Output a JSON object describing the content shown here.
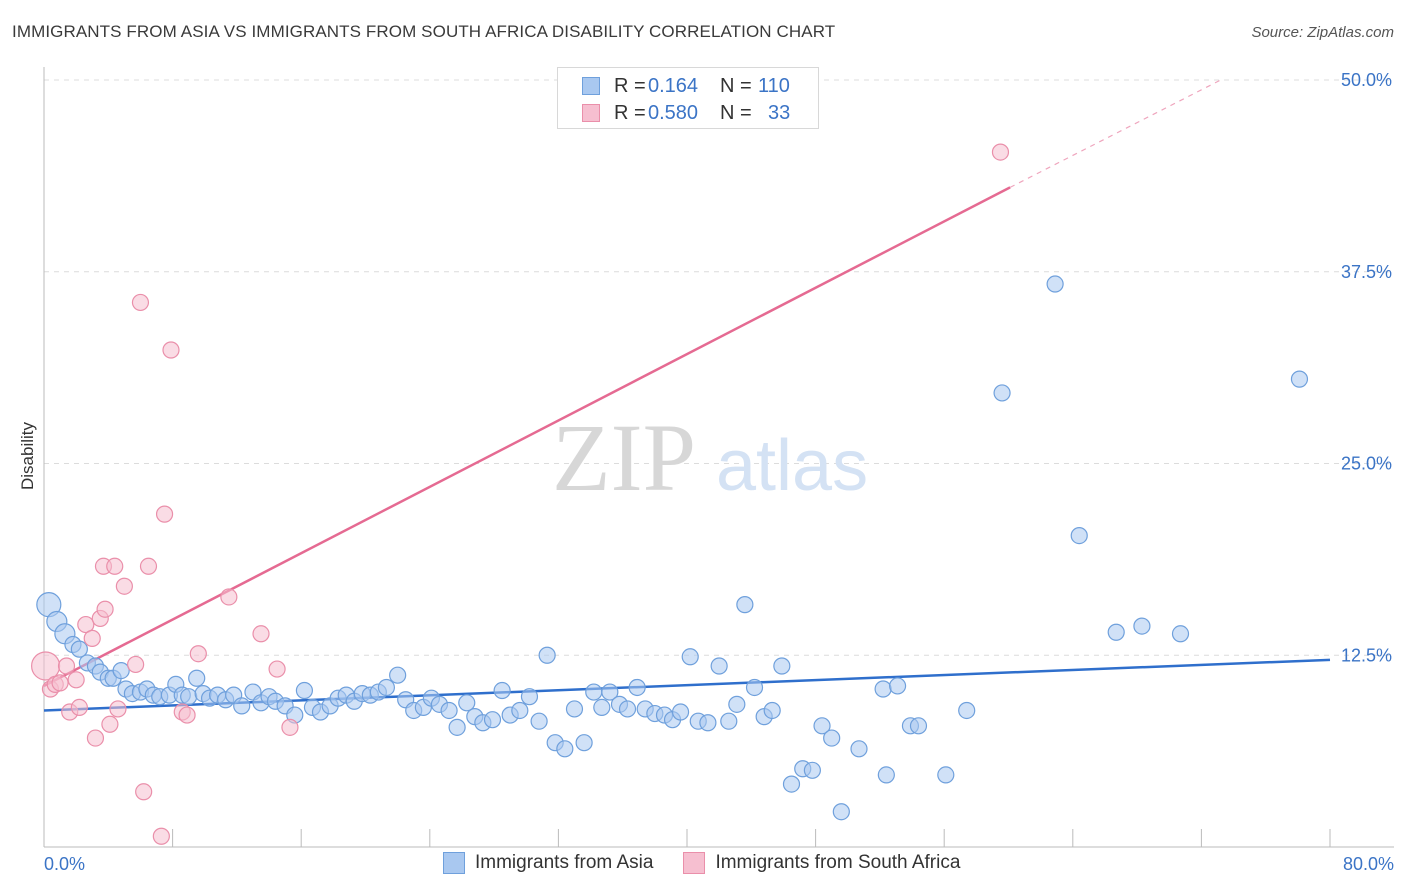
{
  "header": {
    "title": "IMMIGRANTS FROM ASIA VS IMMIGRANTS FROM SOUTH AFRICA DISABILITY CORRELATION CHART",
    "source": "Source: ZipAtlas.com"
  },
  "legend": {
    "rows": [
      {
        "r_label": "R =",
        "r_value": "0.164",
        "n_label": "N =",
        "n_value": "110"
      },
      {
        "r_label": "R =",
        "r_value": "0.580",
        "n_label": "N =",
        "n_value": "33"
      }
    ]
  },
  "watermark": {
    "zip": "ZIP",
    "atlas": "atlas"
  },
  "colors": {
    "asia_fill": "#a9c8f0",
    "asia_stroke": "#6fa0dc",
    "asia_line": "#2f6fcc",
    "sa_fill": "#f6bfd0",
    "sa_stroke": "#ea8faa",
    "sa_line": "#e56a92",
    "axis_text": "#3b74c6",
    "grid": "#dcdcdc"
  },
  "chart_data": {
    "type": "scatter",
    "title": "IMMIGRANTS FROM ASIA VS IMMIGRANTS FROM SOUTH AFRICA DISABILITY CORRELATION CHART",
    "xlabel": "",
    "ylabel": "Disability",
    "xlim": [
      0,
      80
    ],
    "ylim": [
      0,
      50
    ],
    "x_tick_labels": [
      "0.0%",
      "80.0%"
    ],
    "y_ticks": [
      12.5,
      25.0,
      37.5,
      50.0
    ],
    "y_tick_labels": [
      "12.5%",
      "25.0%",
      "37.5%",
      "50.0%"
    ],
    "grid": "horizontal dashed",
    "legend_position": "top-center",
    "series": [
      {
        "name": "Immigrants from Asia",
        "r": 0.164,
        "n": 110,
        "trend": {
          "x": [
            0,
            80
          ],
          "y": [
            8.9,
            12.2
          ],
          "dashed_extension": null
        },
        "points": [
          [
            0.3,
            15.8
          ],
          [
            0.8,
            14.7
          ],
          [
            1.3,
            13.9
          ],
          [
            1.8,
            13.2
          ],
          [
            2.2,
            12.9
          ],
          [
            2.7,
            12.0
          ],
          [
            3.2,
            11.8
          ],
          [
            3.5,
            11.4
          ],
          [
            4.0,
            11.0
          ],
          [
            4.3,
            11.0
          ],
          [
            4.8,
            11.5
          ],
          [
            5.1,
            10.3
          ],
          [
            5.5,
            10.0
          ],
          [
            6.0,
            10.1
          ],
          [
            6.4,
            10.3
          ],
          [
            6.8,
            9.9
          ],
          [
            7.2,
            9.8
          ],
          [
            7.8,
            9.9
          ],
          [
            8.2,
            10.6
          ],
          [
            8.6,
            9.9
          ],
          [
            9.0,
            9.8
          ],
          [
            9.5,
            11.0
          ],
          [
            9.9,
            10.0
          ],
          [
            10.3,
            9.7
          ],
          [
            10.8,
            9.9
          ],
          [
            11.3,
            9.6
          ],
          [
            11.8,
            9.9
          ],
          [
            12.3,
            9.2
          ],
          [
            13.0,
            10.1
          ],
          [
            13.5,
            9.4
          ],
          [
            14.0,
            9.8
          ],
          [
            14.4,
            9.5
          ],
          [
            15.0,
            9.2
          ],
          [
            15.6,
            8.6
          ],
          [
            16.2,
            10.2
          ],
          [
            16.7,
            9.1
          ],
          [
            17.2,
            8.8
          ],
          [
            17.8,
            9.2
          ],
          [
            18.3,
            9.7
          ],
          [
            18.8,
            9.9
          ],
          [
            19.3,
            9.5
          ],
          [
            19.8,
            10.0
          ],
          [
            20.3,
            9.9
          ],
          [
            20.8,
            10.1
          ],
          [
            21.3,
            10.4
          ],
          [
            22.0,
            11.2
          ],
          [
            22.5,
            9.6
          ],
          [
            23.0,
            8.9
          ],
          [
            23.6,
            9.1
          ],
          [
            24.1,
            9.7
          ],
          [
            24.6,
            9.3
          ],
          [
            25.2,
            8.9
          ],
          [
            25.7,
            7.8
          ],
          [
            26.3,
            9.4
          ],
          [
            26.8,
            8.5
          ],
          [
            27.3,
            8.1
          ],
          [
            27.9,
            8.3
          ],
          [
            28.5,
            10.2
          ],
          [
            29.0,
            8.6
          ],
          [
            29.6,
            8.9
          ],
          [
            30.2,
            9.8
          ],
          [
            30.8,
            8.2
          ],
          [
            31.3,
            12.5
          ],
          [
            31.8,
            6.8
          ],
          [
            32.4,
            6.4
          ],
          [
            33.0,
            9.0
          ],
          [
            33.6,
            6.8
          ],
          [
            34.2,
            10.1
          ],
          [
            34.7,
            9.1
          ],
          [
            35.2,
            10.1
          ],
          [
            35.8,
            9.3
          ],
          [
            36.3,
            9.0
          ],
          [
            36.9,
            10.4
          ],
          [
            37.4,
            9.0
          ],
          [
            38.0,
            8.7
          ],
          [
            38.6,
            8.6
          ],
          [
            39.1,
            8.3
          ],
          [
            39.6,
            8.8
          ],
          [
            40.2,
            12.4
          ],
          [
            40.7,
            8.2
          ],
          [
            41.3,
            8.1
          ],
          [
            42.0,
            11.8
          ],
          [
            42.6,
            8.2
          ],
          [
            43.1,
            9.3
          ],
          [
            43.6,
            15.8
          ],
          [
            44.2,
            10.4
          ],
          [
            44.8,
            8.5
          ],
          [
            45.3,
            8.9
          ],
          [
            45.9,
            11.8
          ],
          [
            46.5,
            4.1
          ],
          [
            47.2,
            5.1
          ],
          [
            47.8,
            5.0
          ],
          [
            48.4,
            7.9
          ],
          [
            49.0,
            7.1
          ],
          [
            49.6,
            2.3
          ],
          [
            50.7,
            6.4
          ],
          [
            52.2,
            10.3
          ],
          [
            53.1,
            10.5
          ],
          [
            52.4,
            4.7
          ],
          [
            53.9,
            7.9
          ],
          [
            54.4,
            7.9
          ],
          [
            56.1,
            4.7
          ],
          [
            57.4,
            8.9
          ],
          [
            59.6,
            29.6
          ],
          [
            62.9,
            36.7
          ],
          [
            64.4,
            20.3
          ],
          [
            66.7,
            14.0
          ],
          [
            68.3,
            14.4
          ],
          [
            70.7,
            13.9
          ],
          [
            78.1,
            30.5
          ]
        ]
      },
      {
        "name": "Immigrants from South Africa",
        "r": 0.58,
        "n": 33,
        "trend": {
          "x": [
            0,
            60.1
          ],
          "y": [
            10.5,
            43.0
          ],
          "dashed_extension": {
            "x": [
              60.1,
              73.2
            ],
            "y": [
              43.0,
              50.0
            ]
          }
        },
        "points": [
          [
            0.1,
            11.8
          ],
          [
            0.4,
            10.3
          ],
          [
            0.7,
            10.6
          ],
          [
            1.0,
            10.7
          ],
          [
            1.4,
            11.8
          ],
          [
            1.6,
            8.8
          ],
          [
            2.0,
            10.9
          ],
          [
            2.2,
            9.1
          ],
          [
            2.6,
            14.5
          ],
          [
            3.0,
            13.6
          ],
          [
            3.2,
            7.1
          ],
          [
            3.5,
            14.9
          ],
          [
            3.8,
            15.5
          ],
          [
            3.7,
            18.3
          ],
          [
            4.1,
            8.0
          ],
          [
            4.4,
            18.3
          ],
          [
            4.6,
            9.0
          ],
          [
            5.0,
            17.0
          ],
          [
            5.7,
            11.9
          ],
          [
            6.0,
            35.5
          ],
          [
            6.2,
            3.6
          ],
          [
            6.5,
            18.3
          ],
          [
            7.5,
            21.7
          ],
          [
            7.3,
            0.7
          ],
          [
            7.9,
            32.4
          ],
          [
            8.6,
            8.8
          ],
          [
            8.9,
            8.6
          ],
          [
            9.6,
            12.6
          ],
          [
            11.5,
            16.3
          ],
          [
            13.5,
            13.9
          ],
          [
            14.5,
            11.6
          ],
          [
            15.3,
            7.8
          ],
          [
            59.5,
            45.3
          ]
        ]
      }
    ]
  }
}
